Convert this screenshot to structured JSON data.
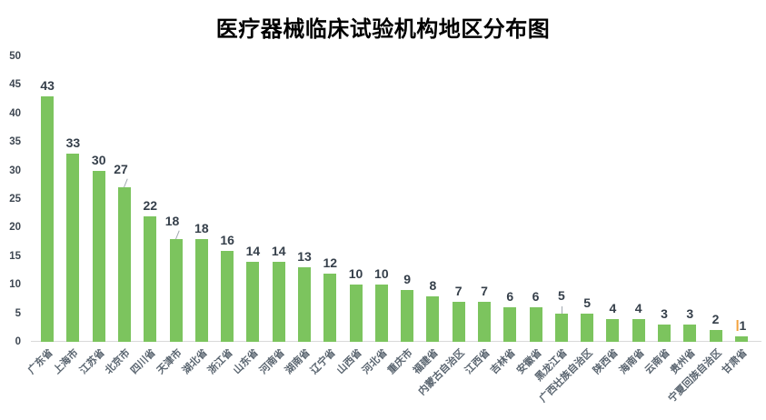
{
  "chart_data": {
    "type": "bar",
    "title": "医疗器械临床试验机构地区分布图",
    "categories": [
      "广东省",
      "上海市",
      "江苏省",
      "北京市",
      "四川省",
      "天津市",
      "湖北省",
      "浙江省",
      "山东省",
      "河南省",
      "湖南省",
      "辽宁省",
      "山西省",
      "河北省",
      "重庆市",
      "福建省",
      "内蒙古自治区",
      "江西省",
      "吉林省",
      "安徽省",
      "黑龙江省",
      "广西壮族自治区",
      "陕西省",
      "海南省",
      "云南省",
      "贵州省",
      "宁夏回族自治区",
      "甘肃省"
    ],
    "values": [
      43,
      33,
      30,
      27,
      22,
      18,
      18,
      16,
      14,
      14,
      13,
      12,
      10,
      10,
      9,
      8,
      7,
      7,
      6,
      6,
      5,
      5,
      4,
      4,
      3,
      3,
      2,
      1
    ],
    "xlabel": "",
    "ylabel": "",
    "ylim": [
      0,
      50
    ],
    "yticks": [
      0,
      5,
      10,
      15,
      20,
      25,
      30,
      35,
      40,
      45,
      50
    ],
    "grid": false,
    "legend": "none",
    "data_labels": true,
    "x_label_rotation_deg": 45,
    "label_callouts": [
      {
        "category": "北京市",
        "leader": "diagonal"
      },
      {
        "category": "天津市",
        "leader": "diagonal"
      },
      {
        "category": "黑龙江省",
        "leader": "vertical"
      }
    ],
    "label_cursor": {
      "category": "甘肃省",
      "color": "#F2A13C"
    },
    "colors": {
      "bar": "#7CC45E",
      "title_text": "#000000",
      "data_label": "#353F4A",
      "y_axis_label": "#3E4752",
      "x_axis_label": "#5A6570",
      "axis_line": "#D9D9D9",
      "leader_line": "#A0A8AF",
      "background": "#FFFFFF"
    }
  }
}
